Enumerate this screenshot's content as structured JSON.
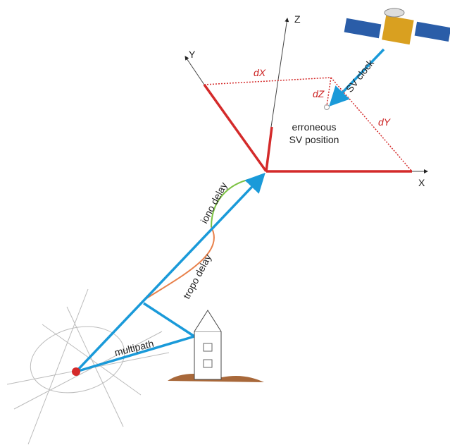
{
  "axes": {
    "x": "X",
    "y": "Y",
    "z": "Z"
  },
  "offsets": {
    "dx": "dX",
    "dy": "dY",
    "dz": "dZ"
  },
  "labels": {
    "sv_clock": "SV clock",
    "erroneous": "erroneous",
    "sv_position": "SV position",
    "iono": "iono delay",
    "tropo": "tropo delay",
    "multipath": "multipath"
  }
}
